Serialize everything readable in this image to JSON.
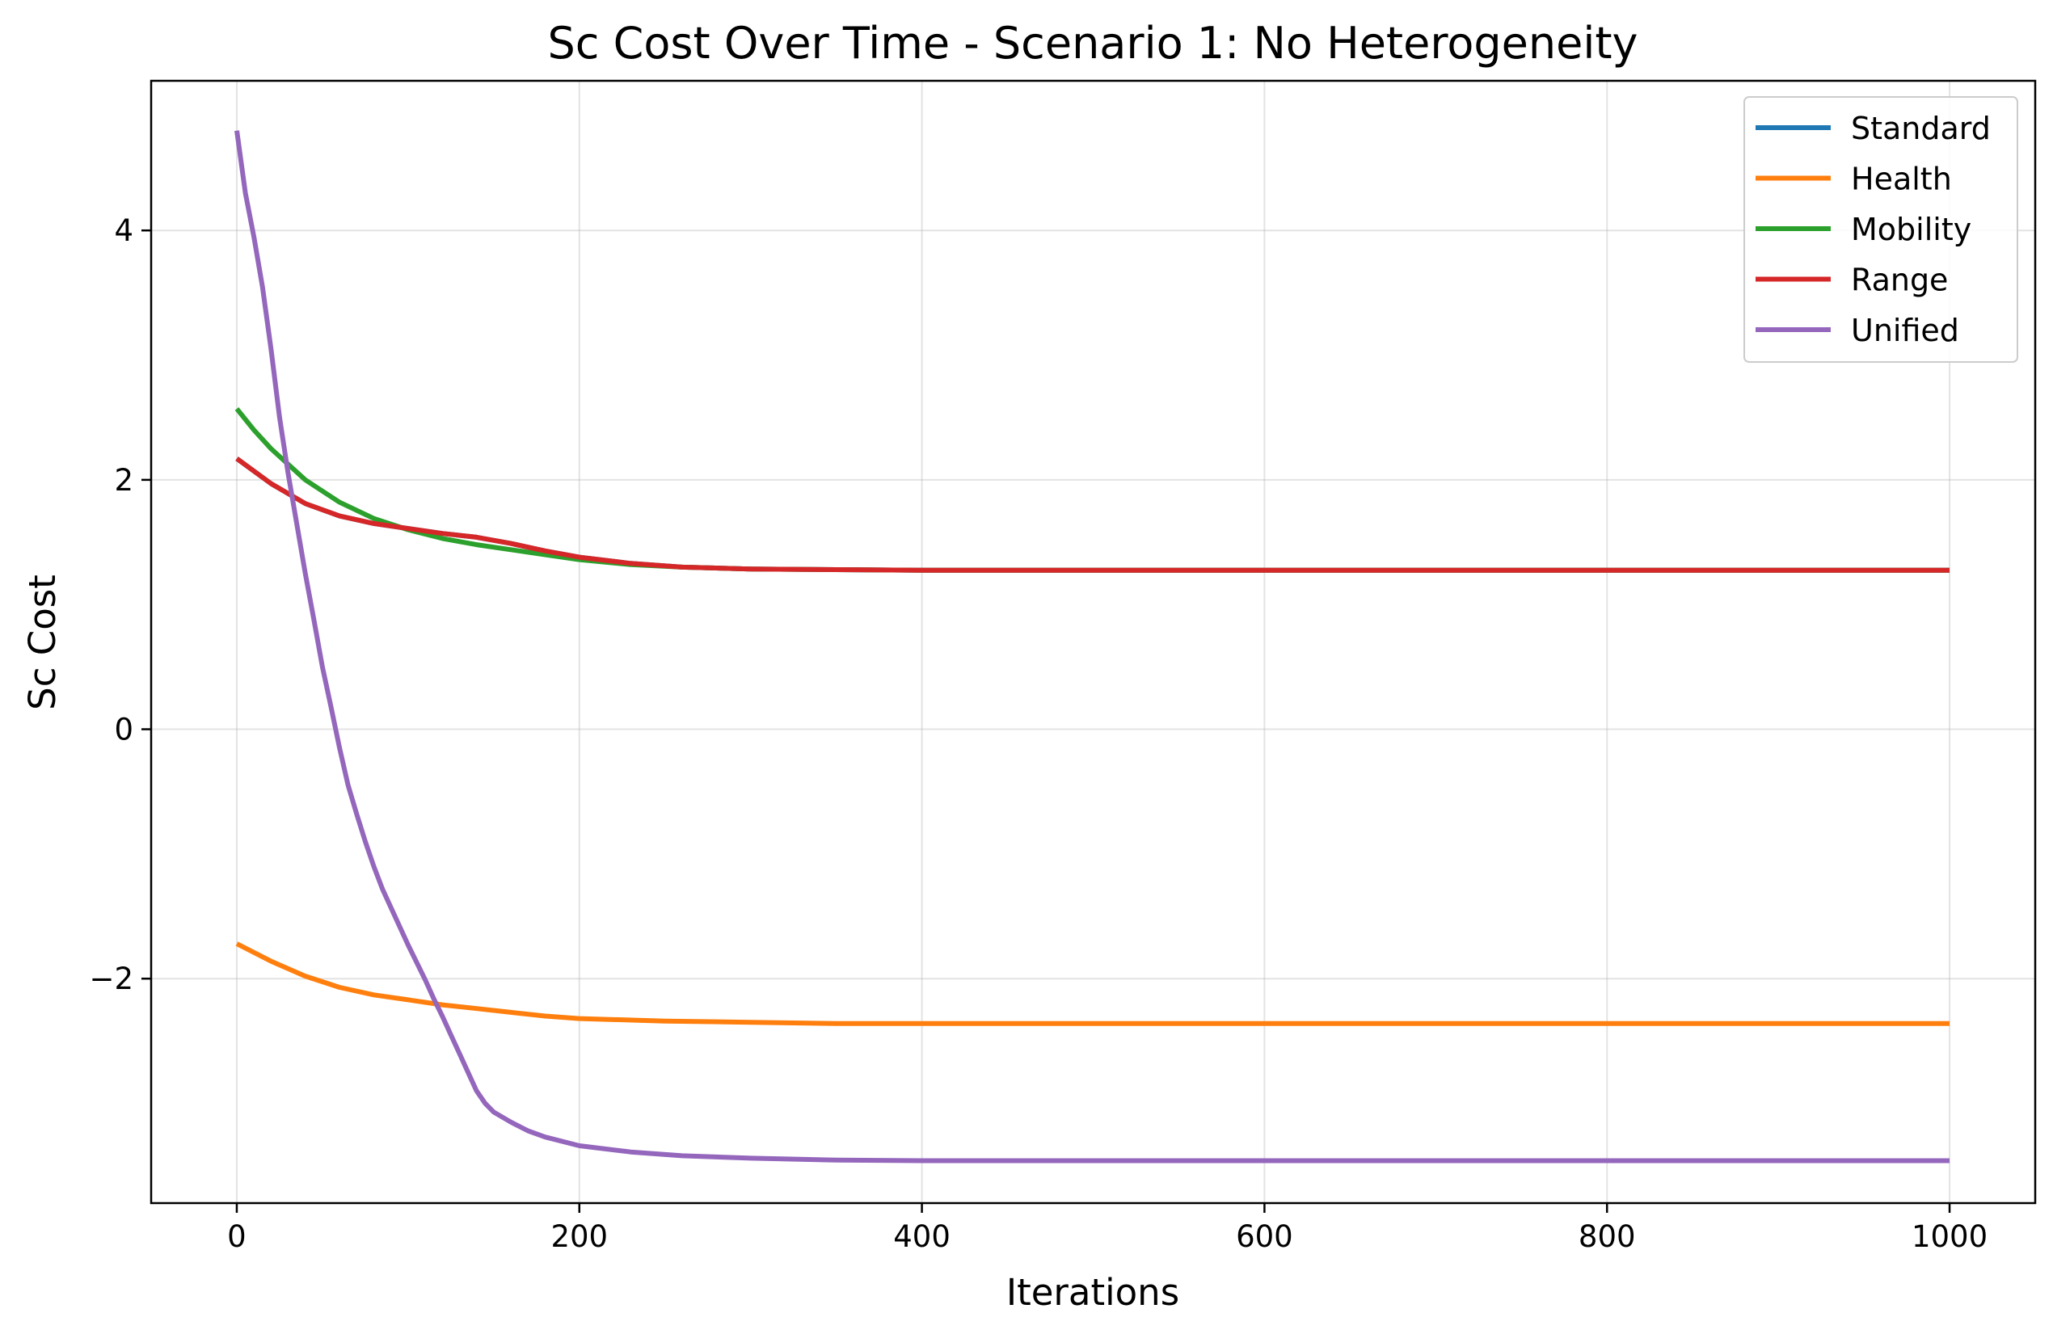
{
  "chart_data": {
    "type": "line",
    "title": "Sc Cost Over Time - Scenario 1: No Heterogeneity",
    "xlabel": "Iterations",
    "ylabel": "Sc Cost",
    "xlim": [
      -50,
      1050
    ],
    "ylim": [
      -3.8,
      5.2
    ],
    "xticks": [
      0,
      200,
      400,
      600,
      800,
      1000
    ],
    "xtick_labels": [
      "0",
      "200",
      "400",
      "600",
      "800",
      "1000"
    ],
    "yticks": [
      -2,
      0,
      2,
      4
    ],
    "ytick_labels": [
      "−2",
      "0",
      "2",
      "4"
    ],
    "grid": true,
    "legend_position": "top-right",
    "series": [
      {
        "name": "Standard",
        "color": "#1f77b4",
        "points": [
          [
            0,
            2.17
          ],
          [
            20,
            1.97
          ],
          [
            40,
            1.81
          ],
          [
            60,
            1.71
          ],
          [
            80,
            1.65
          ],
          [
            100,
            1.61
          ],
          [
            120,
            1.57
          ],
          [
            140,
            1.54
          ],
          [
            160,
            1.49
          ],
          [
            180,
            1.43
          ],
          [
            200,
            1.38
          ],
          [
            230,
            1.33
          ],
          [
            260,
            1.3
          ],
          [
            300,
            1.285
          ],
          [
            350,
            1.28
          ],
          [
            400,
            1.275
          ],
          [
            1000,
            1.275
          ]
        ]
      },
      {
        "name": "Health",
        "color": "#ff7f0e",
        "points": [
          [
            0,
            -1.72
          ],
          [
            20,
            -1.86
          ],
          [
            40,
            -1.98
          ],
          [
            60,
            -2.07
          ],
          [
            80,
            -2.13
          ],
          [
            100,
            -2.17
          ],
          [
            120,
            -2.21
          ],
          [
            140,
            -2.24
          ],
          [
            160,
            -2.27
          ],
          [
            180,
            -2.3
          ],
          [
            200,
            -2.32
          ],
          [
            250,
            -2.34
          ],
          [
            300,
            -2.35
          ],
          [
            350,
            -2.36
          ],
          [
            400,
            -2.36
          ],
          [
            1000,
            -2.36
          ]
        ]
      },
      {
        "name": "Mobility",
        "color": "#2ca02c",
        "points": [
          [
            0,
            2.57
          ],
          [
            10,
            2.4
          ],
          [
            20,
            2.25
          ],
          [
            40,
            2.0
          ],
          [
            60,
            1.82
          ],
          [
            80,
            1.69
          ],
          [
            100,
            1.6
          ],
          [
            120,
            1.53
          ],
          [
            140,
            1.48
          ],
          [
            160,
            1.44
          ],
          [
            180,
            1.4
          ],
          [
            200,
            1.36
          ],
          [
            230,
            1.32
          ],
          [
            260,
            1.3
          ],
          [
            300,
            1.285
          ],
          [
            350,
            1.28
          ],
          [
            400,
            1.275
          ],
          [
            1000,
            1.275
          ]
        ]
      },
      {
        "name": "Range",
        "color": "#d62728",
        "points": [
          [
            0,
            2.17
          ],
          [
            20,
            1.97
          ],
          [
            40,
            1.81
          ],
          [
            60,
            1.71
          ],
          [
            80,
            1.65
          ],
          [
            100,
            1.61
          ],
          [
            120,
            1.57
          ],
          [
            140,
            1.54
          ],
          [
            160,
            1.49
          ],
          [
            180,
            1.43
          ],
          [
            200,
            1.38
          ],
          [
            230,
            1.33
          ],
          [
            260,
            1.3
          ],
          [
            300,
            1.285
          ],
          [
            350,
            1.28
          ],
          [
            400,
            1.275
          ],
          [
            1000,
            1.275
          ]
        ]
      },
      {
        "name": "Unified",
        "color": "#9467bd",
        "points": [
          [
            0,
            4.8
          ],
          [
            5,
            4.3
          ],
          [
            10,
            3.95
          ],
          [
            15,
            3.55
          ],
          [
            20,
            3.05
          ],
          [
            25,
            2.5
          ],
          [
            30,
            2.05
          ],
          [
            35,
            1.65
          ],
          [
            40,
            1.25
          ],
          [
            45,
            0.88
          ],
          [
            50,
            0.5
          ],
          [
            55,
            0.18
          ],
          [
            60,
            -0.15
          ],
          [
            65,
            -0.45
          ],
          [
            70,
            -0.68
          ],
          [
            75,
            -0.9
          ],
          [
            80,
            -1.1
          ],
          [
            85,
            -1.28
          ],
          [
            90,
            -1.43
          ],
          [
            95,
            -1.58
          ],
          [
            100,
            -1.73
          ],
          [
            105,
            -1.87
          ],
          [
            110,
            -2.01
          ],
          [
            115,
            -2.16
          ],
          [
            120,
            -2.3
          ],
          [
            125,
            -2.45
          ],
          [
            130,
            -2.6
          ],
          [
            135,
            -2.75
          ],
          [
            140,
            -2.9
          ],
          [
            145,
            -3.0
          ],
          [
            150,
            -3.07
          ],
          [
            160,
            -3.15
          ],
          [
            170,
            -3.22
          ],
          [
            180,
            -3.27
          ],
          [
            200,
            -3.34
          ],
          [
            230,
            -3.39
          ],
          [
            260,
            -3.42
          ],
          [
            300,
            -3.44
          ],
          [
            350,
            -3.455
          ],
          [
            400,
            -3.46
          ],
          [
            500,
            -3.46
          ],
          [
            1000,
            -3.46
          ]
        ]
      }
    ]
  }
}
